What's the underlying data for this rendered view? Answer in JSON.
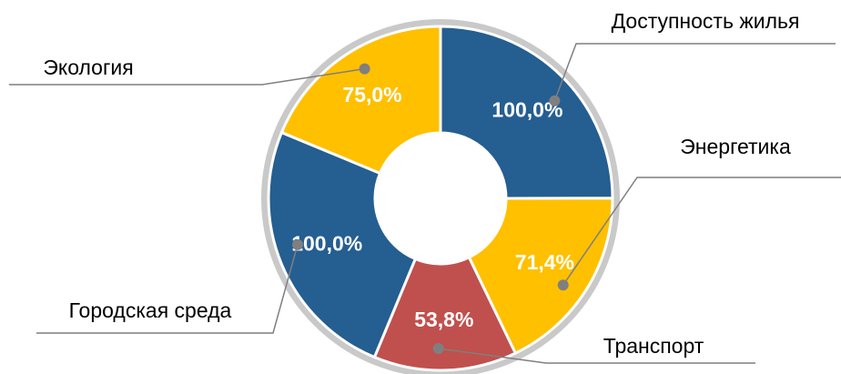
{
  "chart_data": {
    "type": "donut",
    "categories": [
      "Доступность жилья",
      "Энергетика",
      "Транспорт",
      "Городская среда",
      "Экология"
    ],
    "values": [
      100,
      71.4,
      53.8,
      100,
      75
    ],
    "value_labels": [
      "100,0%",
      "71,4%",
      "53,8%",
      "100,0%",
      "75,0%"
    ],
    "colors": [
      "#255e91",
      "#ffc000",
      "#c0504d",
      "#255e91",
      "#ffc000"
    ]
  }
}
